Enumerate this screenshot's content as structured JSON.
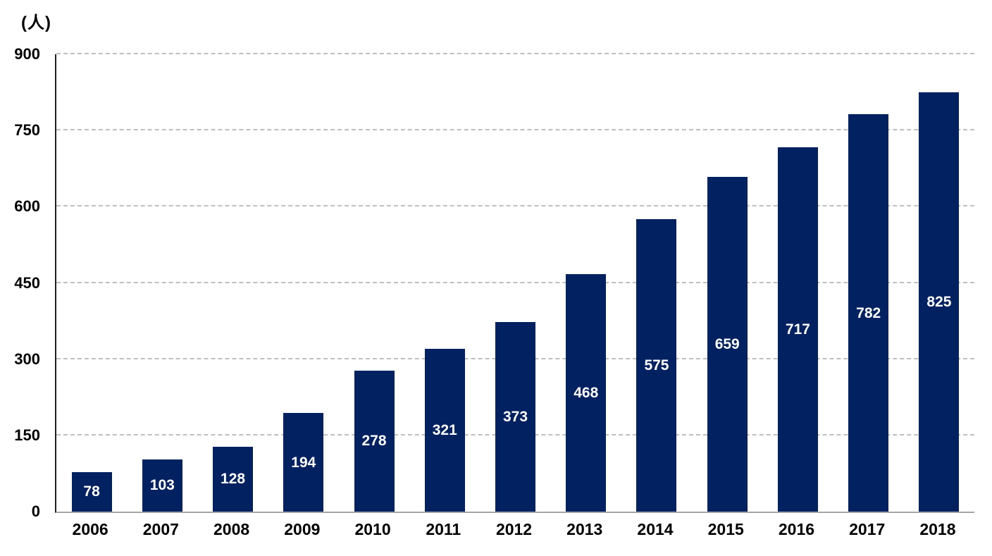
{
  "chart_data": {
    "type": "bar",
    "title": "",
    "categories": [
      "2006",
      "2007",
      "2008",
      "2009",
      "2010",
      "2011",
      "2012",
      "2013",
      "2014",
      "2015",
      "2016",
      "2017",
      "2018"
    ],
    "values": [
      78,
      103,
      128,
      194,
      278,
      321,
      373,
      468,
      575,
      659,
      717,
      782,
      825
    ],
    "xlabel": "",
    "ylabel": "(人)",
    "ylim": [
      0,
      900
    ],
    "yticks": [
      0,
      150,
      300,
      450,
      600,
      750,
      900
    ],
    "grid": "horizontal dashed",
    "legend": "none",
    "value_labels": "centered inside bars",
    "colors": {
      "bar": "#022160",
      "value_label": "#ffffff",
      "grid": "#bfbfbf",
      "y_axis": "#1f1f1f",
      "x_axis": "#a6a6a6",
      "text": "#000000",
      "background": "#ffffff"
    }
  }
}
